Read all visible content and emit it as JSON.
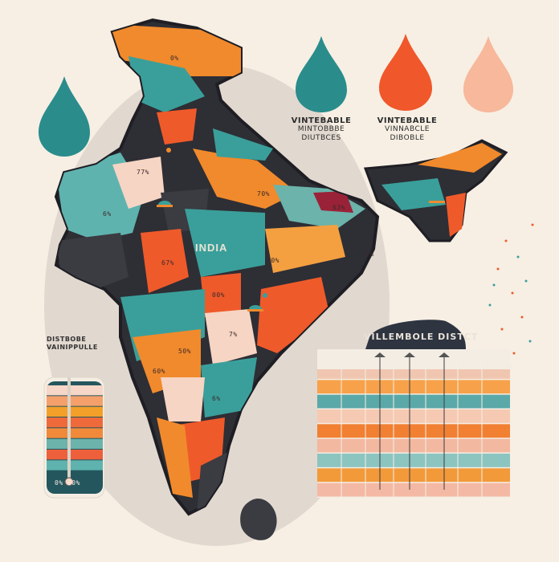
{
  "map": {
    "title": "INDIA",
    "region_labels": [
      "0%",
      "77%",
      "6%",
      "63%",
      "67%",
      "70%",
      "00%",
      "50%",
      "60%",
      "7%",
      "70%",
      "0%",
      "6%"
    ]
  },
  "legend": {
    "items": [
      {
        "name": "teal-drop",
        "color": "#2b8c8c",
        "line1": "",
        "line2": "",
        "line3": ""
      },
      {
        "name": "teal-drop-2",
        "color": "#2b8c8c",
        "line1": "VINTEBABLE",
        "line2": "MINTOBBBE",
        "line3": "DIUTBCES"
      },
      {
        "name": "orange-drop",
        "color": "#f0572a",
        "line1": "VINTEBABLE",
        "line2": "VINNABCLE",
        "line3": "DIBOBLE"
      },
      {
        "name": "peach-drop",
        "color": "#f7b89b",
        "line1": "",
        "line2": "",
        "line3": ""
      }
    ]
  },
  "gauge": {
    "title_line1": "DISTBOBE",
    "title_line2": "VAINIPPULLE",
    "bottom_label": "0% 00%",
    "segments": [
      "#f6d6c6",
      "#f5a06a",
      "#f2a02a",
      "#ef6a3b",
      "#f08a3a",
      "#6bb3ab",
      "#ee5f3c",
      "#5fb3ae",
      "#24565e"
    ]
  },
  "table": {
    "title": "VILLEMBOLE DISTCT",
    "row_colors": [
      "#f0c6b0",
      "#f7a24a",
      "#5aa9a8",
      "#f6c9b2",
      "#f18032",
      "#f2b8a0",
      "#8cc4c0",
      "#f29a3a",
      "#f4b9a4"
    ]
  },
  "colors": {
    "background": "#f7efe4",
    "teal": "#3a9f9a",
    "dark_teal": "#24565e",
    "orange": "#f18a2c",
    "red_orange": "#ef5a2a",
    "charcoal": "#3b3b42",
    "peach": "#f6d5c4",
    "maroon": "#9a2238"
  }
}
